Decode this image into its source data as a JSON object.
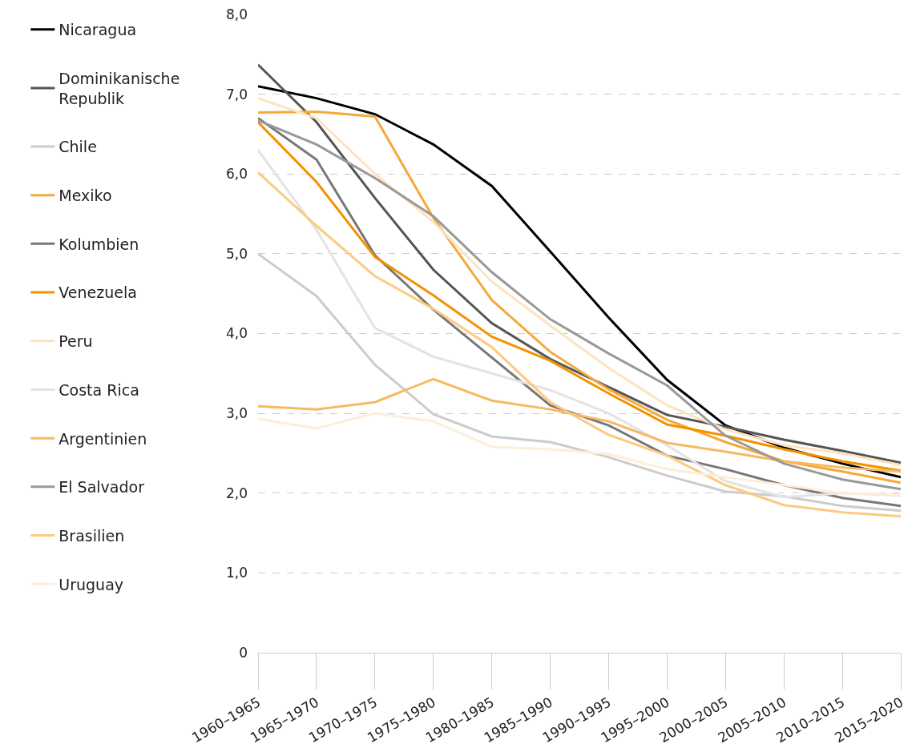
{
  "chart_data": {
    "type": "line",
    "categories": [
      "1960–1965",
      "1965–1970",
      "1970–1975",
      "1975–1980",
      "1980–1985",
      "1985–1990",
      "1990–1995",
      "1995–2000",
      "2000–2005",
      "2005–2010",
      "2010–2015",
      "2015–2020"
    ],
    "ylim": [
      0,
      8
    ],
    "yticks": [
      {
        "value": 0,
        "label": "0"
      },
      {
        "value": 1,
        "label": "1,0"
      },
      {
        "value": 2,
        "label": "2,0"
      },
      {
        "value": 3,
        "label": "3,0"
      },
      {
        "value": 4,
        "label": "4,0"
      },
      {
        "value": 5,
        "label": "5,0"
      },
      {
        "value": 6,
        "label": "6,0"
      },
      {
        "value": 7,
        "label": "7,0"
      },
      {
        "value": 8,
        "label": "8,0"
      }
    ],
    "grid": "y",
    "legend": "left",
    "marker": "none",
    "line_style": "solid",
    "series": [
      {
        "name": "Nicaragua",
        "color": "#000000",
        "values": [
          7.1,
          6.95,
          6.75,
          6.37,
          5.85,
          5.03,
          4.2,
          3.42,
          2.85,
          2.57,
          2.37,
          2.2
        ]
      },
      {
        "name": "Dominikanische Republik",
        "color": "#555555",
        "values": [
          7.37,
          6.65,
          5.7,
          4.8,
          4.13,
          3.68,
          3.33,
          2.98,
          2.83,
          2.67,
          2.53,
          2.38
        ]
      },
      {
        "name": "Chile",
        "color": "#cccccc",
        "values": [
          5.0,
          4.47,
          3.61,
          2.99,
          2.71,
          2.64,
          2.45,
          2.22,
          2.02,
          1.96,
          1.84,
          1.78
        ]
      },
      {
        "name": "Mexiko",
        "color": "#f5a93c",
        "values": [
          6.77,
          6.78,
          6.72,
          5.45,
          4.42,
          3.77,
          3.3,
          2.92,
          2.64,
          2.4,
          2.27,
          2.13
        ]
      },
      {
        "name": "Kolumbien",
        "color": "#777777",
        "values": [
          6.7,
          6.18,
          4.98,
          4.3,
          3.7,
          3.1,
          2.85,
          2.47,
          2.3,
          2.1,
          1.94,
          1.84
        ]
      },
      {
        "name": "Venezuela",
        "color": "#f39200",
        "values": [
          6.65,
          5.9,
          4.96,
          4.48,
          3.96,
          3.66,
          3.25,
          2.86,
          2.72,
          2.55,
          2.4,
          2.28
        ]
      },
      {
        "name": "Peru",
        "color": "#fde3c0",
        "values": [
          6.95,
          6.7,
          6.0,
          5.4,
          4.65,
          4.1,
          3.57,
          3.1,
          2.8,
          2.6,
          2.5,
          2.35
        ]
      },
      {
        "name": "Costa Rica",
        "color": "#e3e3e3",
        "values": [
          6.3,
          5.3,
          4.07,
          3.71,
          3.5,
          3.29,
          3.0,
          2.6,
          2.15,
          1.95,
          2.0,
          1.97
        ]
      },
      {
        "name": "Argentinien",
        "color": "#f7b960",
        "values": [
          3.09,
          3.05,
          3.14,
          3.43,
          3.16,
          3.05,
          2.9,
          2.63,
          2.52,
          2.4,
          2.32,
          2.27
        ]
      },
      {
        "name": "El Salvador",
        "color": "#999999",
        "values": [
          6.67,
          6.37,
          5.95,
          5.47,
          4.77,
          4.18,
          3.75,
          3.35,
          2.72,
          2.37,
          2.17,
          2.05
        ]
      },
      {
        "name": "Brasilien",
        "color": "#fcca80",
        "values": [
          6.02,
          5.35,
          4.72,
          4.31,
          3.83,
          3.14,
          2.73,
          2.47,
          2.1,
          1.85,
          1.76,
          1.71
        ]
      },
      {
        "name": "Uruguay",
        "color": "#fdeedb",
        "values": [
          2.93,
          2.81,
          3.0,
          2.9,
          2.58,
          2.55,
          2.49,
          2.3,
          2.2,
          2.1,
          2.0,
          1.98
        ]
      }
    ]
  }
}
